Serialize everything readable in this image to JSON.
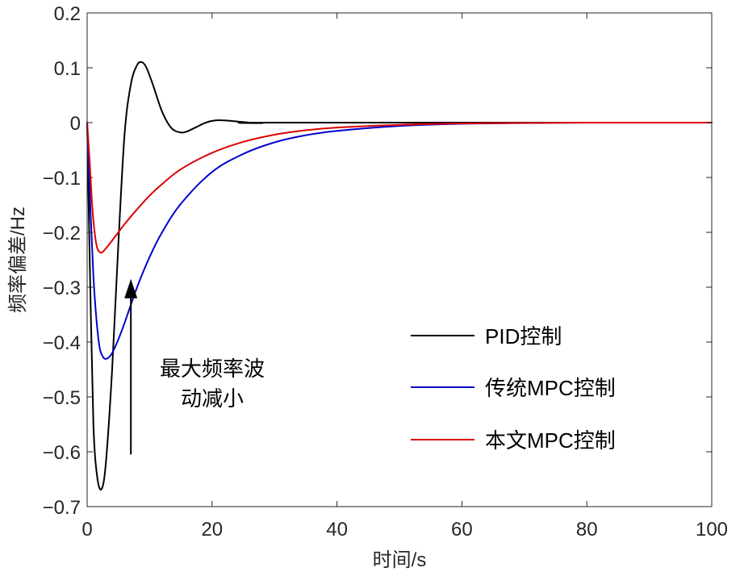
{
  "chart_data": {
    "type": "line",
    "title": "",
    "xlabel": "时间/s",
    "ylabel": "频率偏差/Hz",
    "xlim": [
      0,
      100
    ],
    "ylim": [
      -0.7,
      0.2
    ],
    "xticks": [
      0,
      20,
      40,
      60,
      80,
      100
    ],
    "xtick_labels": [
      "0",
      "20",
      "40",
      "60",
      "80",
      "100"
    ],
    "yticks": [
      0.2,
      0.1,
      0,
      -0.1,
      -0.2,
      -0.3,
      -0.4,
      -0.5,
      -0.6,
      -0.7
    ],
    "ytick_labels": [
      "0.2",
      "0.1",
      "0",
      "−0.1",
      "−0.2",
      "−0.3",
      "−0.4",
      "−0.5",
      "−0.6",
      "−0.7"
    ],
    "grid": false,
    "legend_position": "right",
    "series": [
      {
        "name": "PID控制",
        "color": "#000000",
        "points": [
          [
            0,
            0
          ],
          [
            0.5,
            -0.3
          ],
          [
            1,
            -0.55
          ],
          [
            1.6,
            -0.645
          ],
          [
            2.3,
            -0.668
          ],
          [
            3,
            -0.62
          ],
          [
            4,
            -0.45
          ],
          [
            5,
            -0.22
          ],
          [
            6,
            -0.02
          ],
          [
            7,
            0.07
          ],
          [
            8,
            0.105
          ],
          [
            8.8,
            0.11
          ],
          [
            9.5,
            0.1
          ],
          [
            10.5,
            0.07
          ],
          [
            12,
            0.02
          ],
          [
            13.5,
            -0.01
          ],
          [
            15,
            -0.018
          ],
          [
            16,
            -0.016
          ],
          [
            17.5,
            -0.008
          ],
          [
            19,
            0
          ],
          [
            20.5,
            0.004
          ],
          [
            22,
            0.004
          ],
          [
            24,
            0.002
          ],
          [
            26,
            0
          ],
          [
            28,
            -0.001
          ],
          [
            30,
            0
          ],
          [
            100,
            0
          ]
        ]
      },
      {
        "name": "传统MPC控制",
        "color": "#0000cc",
        "points": [
          [
            0,
            0
          ],
          [
            0.5,
            -0.15
          ],
          [
            1,
            -0.28
          ],
          [
            1.5,
            -0.36
          ],
          [
            2,
            -0.41
          ],
          [
            2.6,
            -0.428
          ],
          [
            3.2,
            -0.43
          ],
          [
            4,
            -0.42
          ],
          [
            5,
            -0.395
          ],
          [
            6,
            -0.365
          ],
          [
            8,
            -0.3
          ],
          [
            10,
            -0.245
          ],
          [
            12,
            -0.2
          ],
          [
            15,
            -0.148
          ],
          [
            20,
            -0.09
          ],
          [
            25,
            -0.057
          ],
          [
            30,
            -0.036
          ],
          [
            35,
            -0.023
          ],
          [
            40,
            -0.015
          ],
          [
            50,
            -0.006
          ],
          [
            60,
            -0.002
          ],
          [
            70,
            -0.0008
          ],
          [
            80,
            0
          ],
          [
            100,
            0
          ]
        ]
      },
      {
        "name": "本文MPC控制",
        "color": "#dd0000",
        "points": [
          [
            0,
            0
          ],
          [
            0.4,
            -0.07
          ],
          [
            0.8,
            -0.15
          ],
          [
            1.2,
            -0.2
          ],
          [
            1.6,
            -0.228
          ],
          [
            2.2,
            -0.237
          ],
          [
            2.8,
            -0.232
          ],
          [
            4,
            -0.215
          ],
          [
            6,
            -0.185
          ],
          [
            8,
            -0.158
          ],
          [
            10,
            -0.133
          ],
          [
            12,
            -0.112
          ],
          [
            15,
            -0.085
          ],
          [
            20,
            -0.055
          ],
          [
            25,
            -0.035
          ],
          [
            30,
            -0.022
          ],
          [
            35,
            -0.014
          ],
          [
            40,
            -0.009
          ],
          [
            50,
            -0.004
          ],
          [
            60,
            -0.0015
          ],
          [
            70,
            -0.0005
          ],
          [
            80,
            0
          ],
          [
            100,
            0
          ]
        ]
      }
    ],
    "annotations": [
      {
        "text_lines": [
          "最大频率波",
          "动减小"
        ],
        "arrow_from": [
          7,
          -0.605
        ],
        "arrow_to": [
          7,
          -0.285
        ]
      }
    ]
  }
}
